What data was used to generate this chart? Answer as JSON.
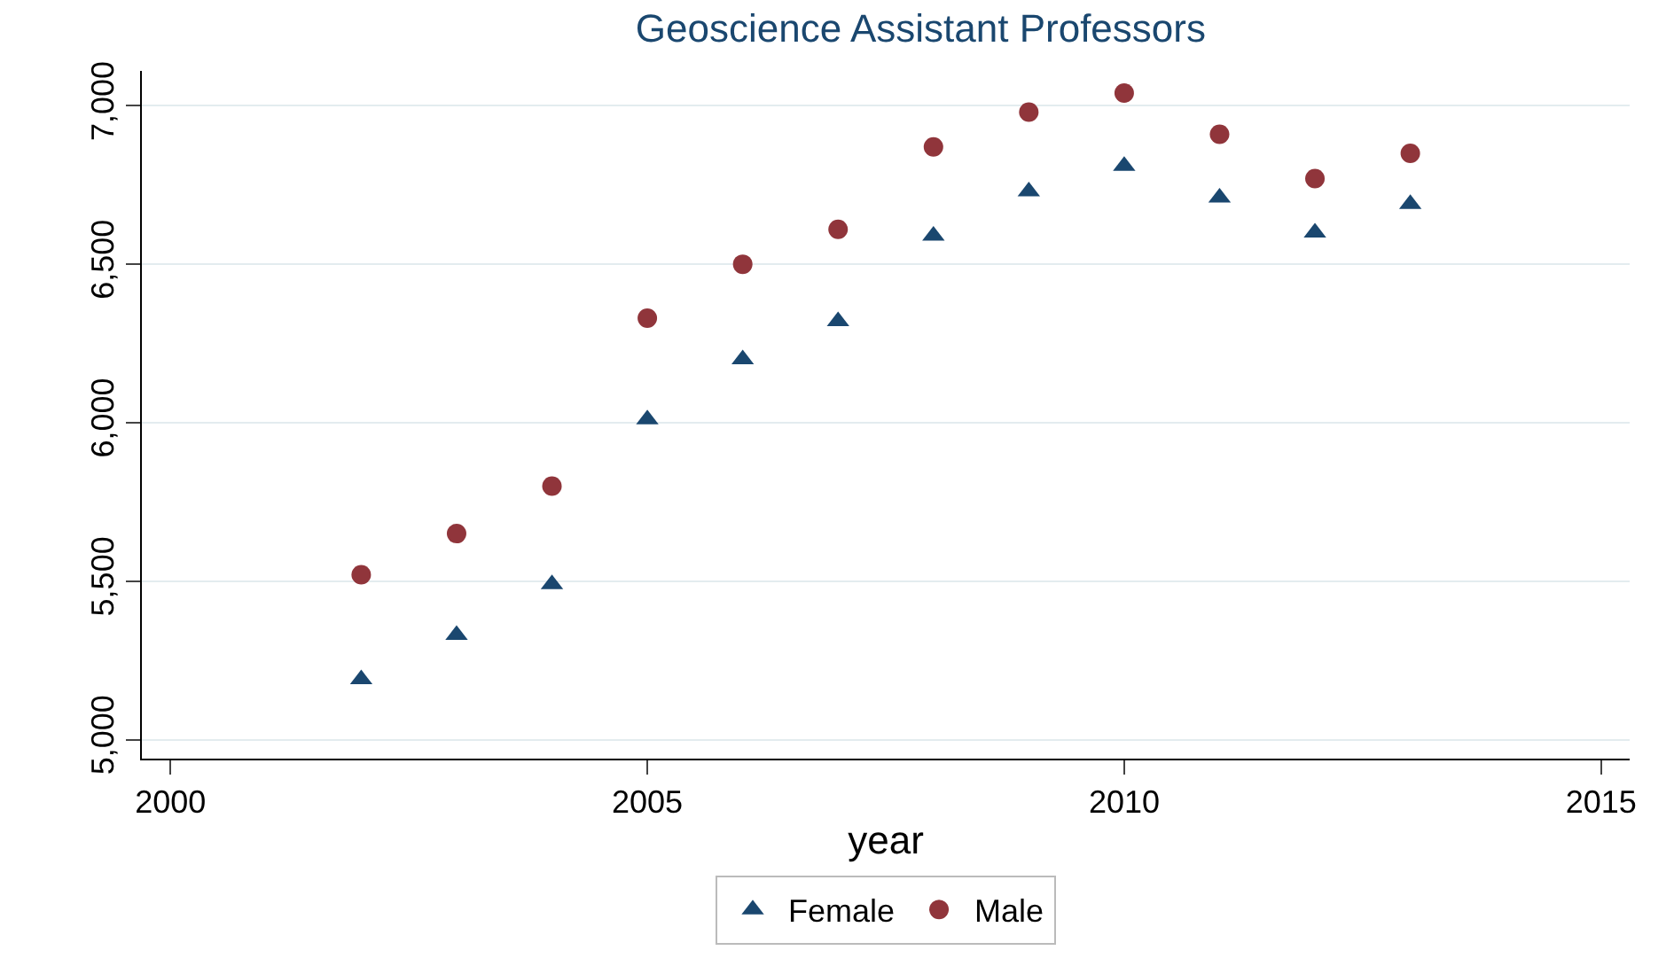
{
  "chart_data": {
    "type": "scatter",
    "title": "Geoscience Assistant Professors",
    "xlabel": "year",
    "x": [
      2002,
      2003,
      2004,
      2005,
      2006,
      2007,
      2008,
      2009,
      2010,
      2011,
      2012,
      2013
    ],
    "series": [
      {
        "name": "Female",
        "color": "#1a476f",
        "marker": "triangle",
        "values": [
          5190,
          5330,
          5490,
          6010,
          6200,
          6320,
          6590,
          6730,
          6810,
          6710,
          6600,
          6690
        ]
      },
      {
        "name": "Male",
        "color": "#90353b",
        "marker": "circle",
        "values": [
          5520,
          5650,
          5800,
          6330,
          6500,
          6610,
          6870,
          6980,
          7040,
          6910,
          6770,
          6850
        ]
      }
    ],
    "xlim": [
      1999.7,
      2015.3
    ],
    "xticks": [
      2000,
      2005,
      2010,
      2015
    ],
    "ylim": [
      4940,
      7110
    ],
    "yticks": [
      {
        "value": 5000,
        "label": "5,000"
      },
      {
        "value": 5500,
        "label": "5,500"
      },
      {
        "value": 6000,
        "label": "6,000"
      },
      {
        "value": 6500,
        "label": "6,500"
      },
      {
        "value": 7000,
        "label": "7,000"
      }
    ],
    "grid": "y",
    "legend": "bottom"
  }
}
